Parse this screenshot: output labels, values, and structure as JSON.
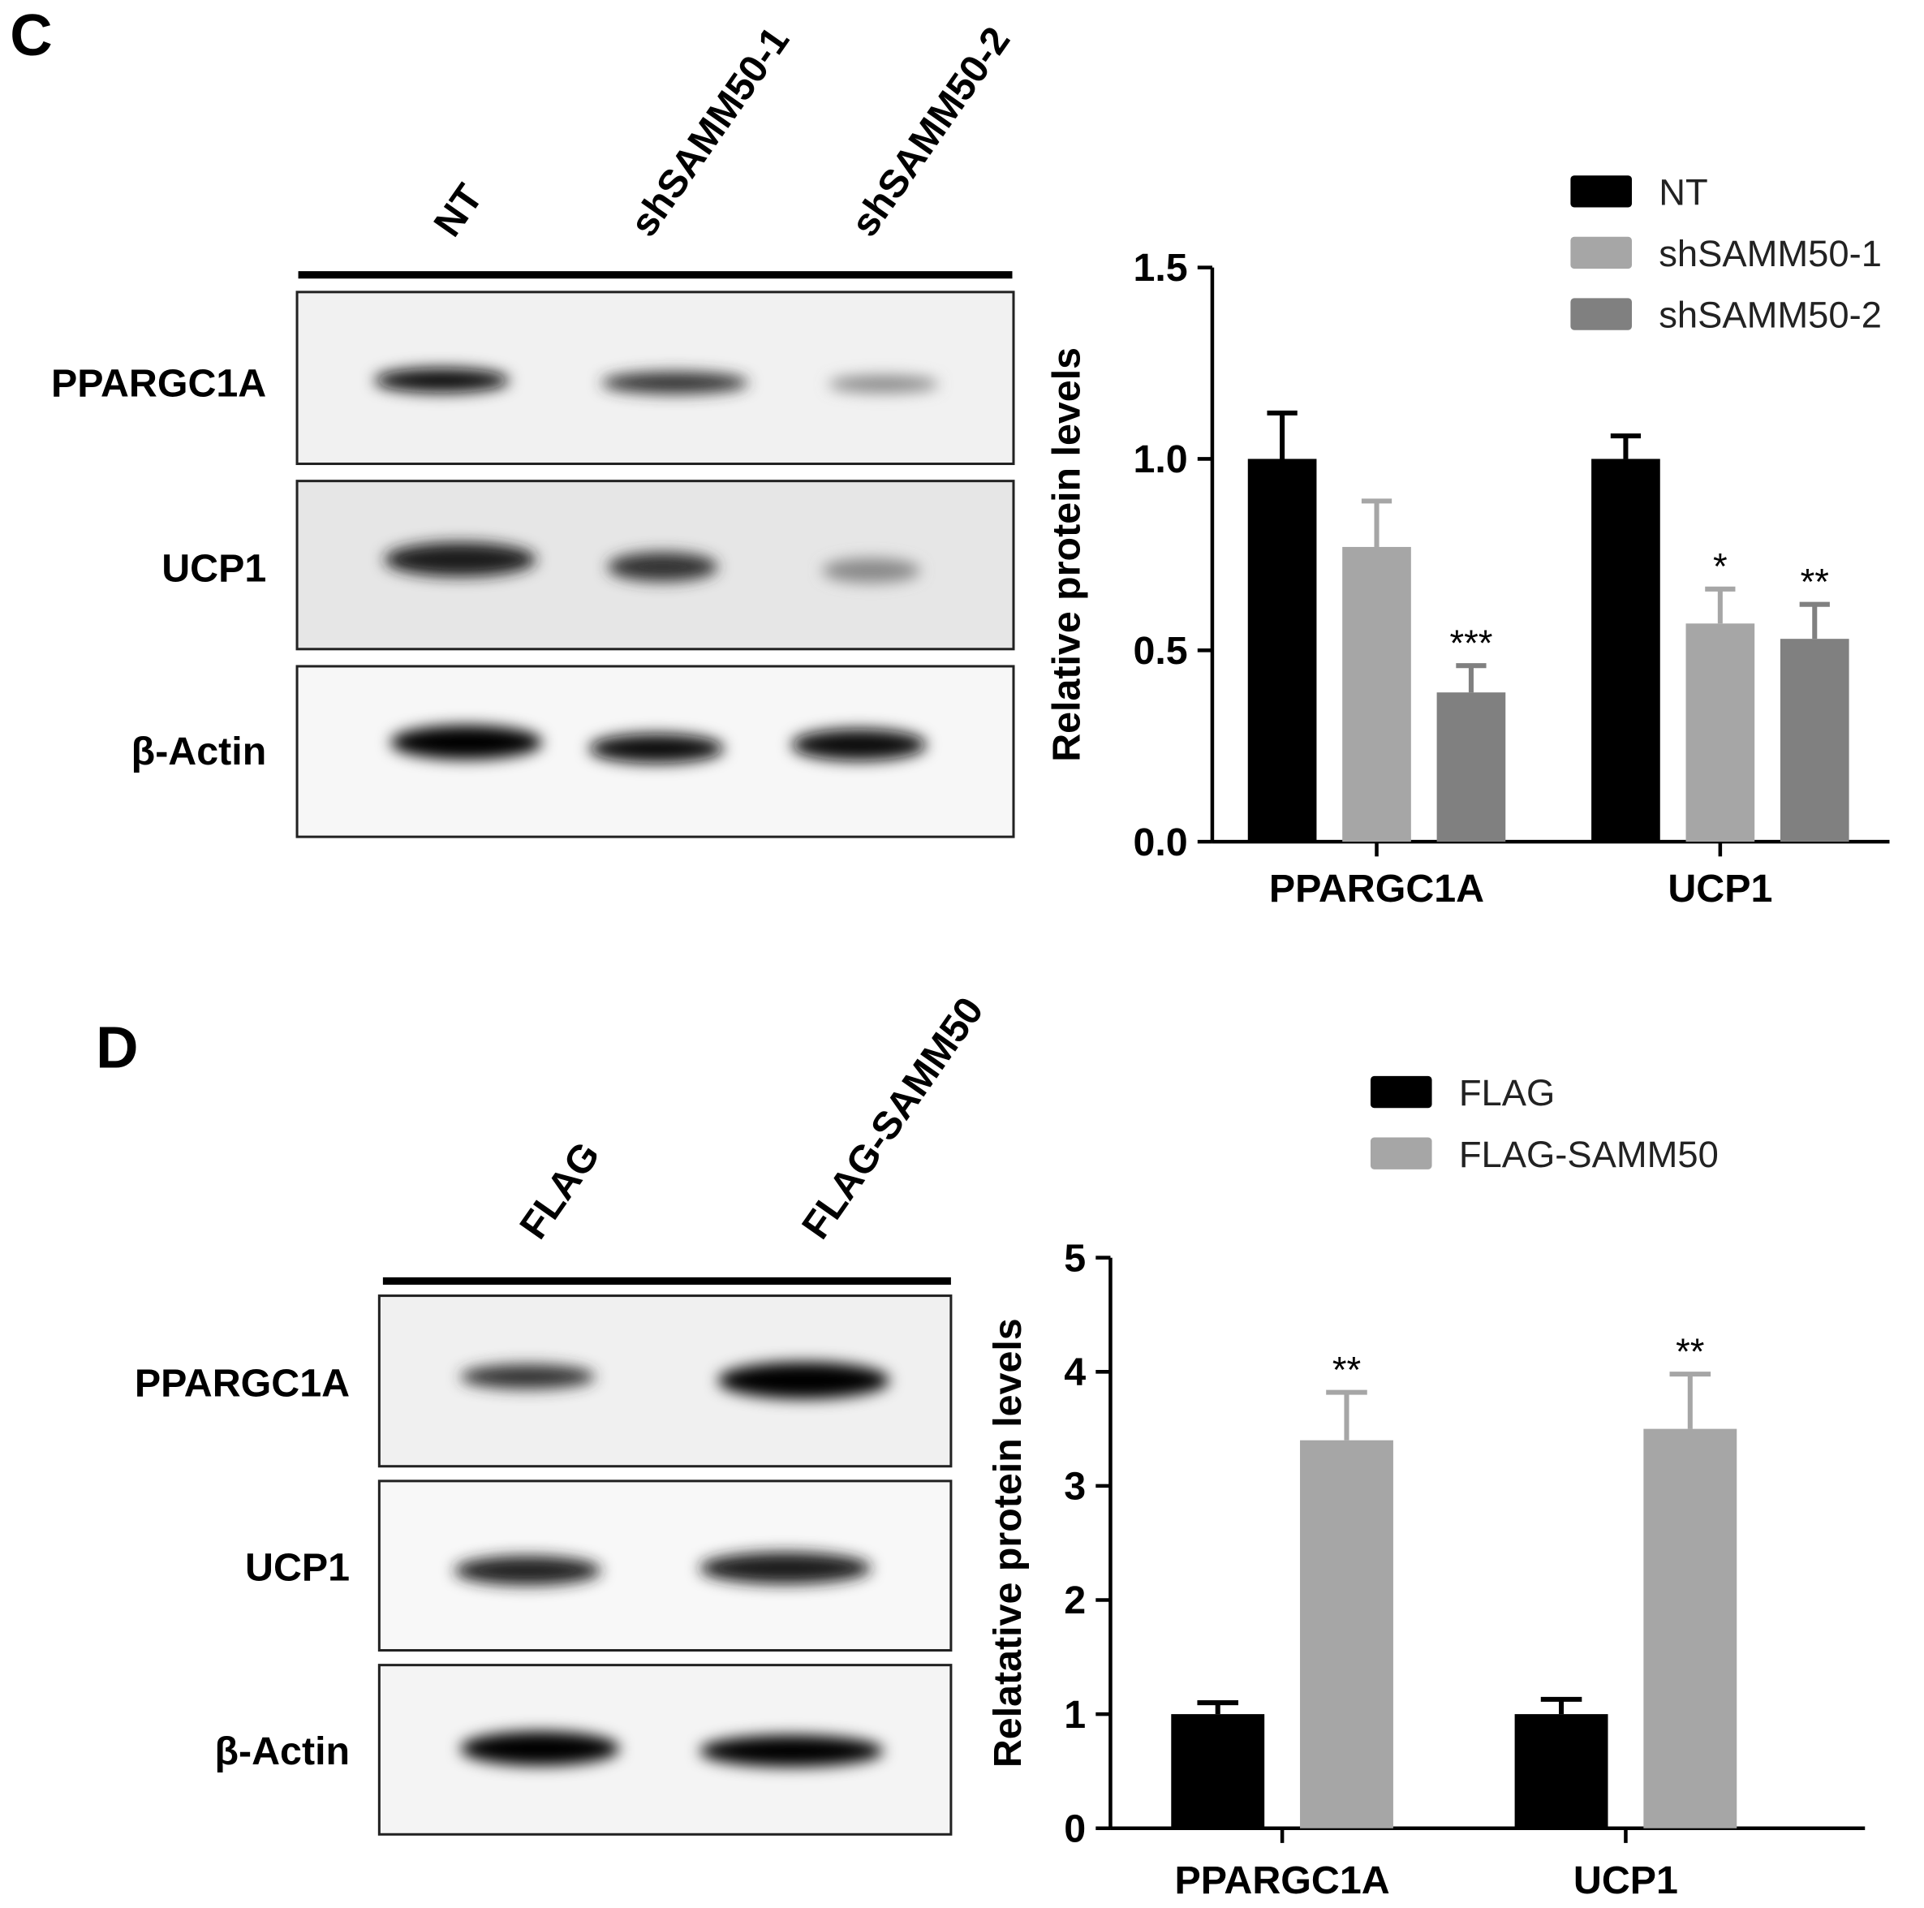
{
  "chart_data": [
    {
      "type": "bar",
      "y_label": "Relative protein levels",
      "categories": [
        "PPARGC1A",
        "UCP1"
      ],
      "series": [
        {
          "name": "NT",
          "color": "#000000",
          "values": [
            1.0,
            1.0
          ],
          "errors": [
            0.12,
            0.06
          ],
          "significance": [
            null,
            null
          ]
        },
        {
          "name": "shSAMM50-1",
          "color": "#a6a6a6",
          "values": [
            0.77,
            0.57
          ],
          "errors": [
            0.12,
            0.09
          ],
          "significance": [
            null,
            "*"
          ]
        },
        {
          "name": "shSAMM50-2",
          "color": "#808080",
          "values": [
            0.39,
            0.53
          ],
          "errors": [
            0.07,
            0.09
          ],
          "significance": [
            "***",
            "**"
          ]
        }
      ],
      "ylim": [
        0,
        1.5
      ],
      "yticks": [
        {
          "value": 0,
          "label": "0.0"
        },
        0.5,
        {
          "value": 1,
          "label": "1.0"
        },
        1.5
      ]
    },
    {
      "type": "bar",
      "y_label": "Relatative protein levels",
      "categories": [
        "PPARGC1A",
        "UCP1"
      ],
      "series": [
        {
          "name": "FLAG",
          "color": "#000000",
          "values": [
            1.0,
            1.0
          ],
          "errors": [
            0.1,
            0.13
          ],
          "significance": [
            null,
            null
          ]
        },
        {
          "name": "FLAG-SAMM50",
          "color": "#a6a6a6",
          "values": [
            3.4,
            3.5
          ],
          "errors": [
            0.42,
            0.48
          ],
          "significance": [
            "**",
            "**"
          ]
        }
      ],
      "ylim": [
        0,
        5
      ],
      "yticks": [
        0,
        1,
        2,
        3,
        4,
        5
      ]
    }
  ],
  "blots": [
    {
      "panel": "C",
      "lanes": [
        "NT",
        "shSAMM50-1",
        "shSAMM50-2"
      ],
      "rows": [
        "PPARGC1A",
        "UCP1",
        "β-Actin"
      ]
    },
    {
      "panel": "D",
      "lanes": [
        "FLAG",
        "FLAG-SAMM50"
      ],
      "rows": [
        "PPARGC1A",
        "UCP1",
        "β-Actin"
      ]
    }
  ]
}
